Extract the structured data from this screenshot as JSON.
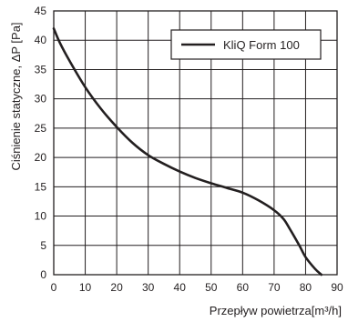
{
  "chart_data": {
    "type": "line",
    "title": "",
    "xlabel": "Przepływ powietrza[m³/h]",
    "ylabel": "Ciśnienie statyczne, ΔP [Pa]",
    "xlim": [
      0,
      90
    ],
    "ylim": [
      0,
      45
    ],
    "x_ticks": [
      0,
      10,
      20,
      30,
      40,
      50,
      60,
      70,
      80,
      90
    ],
    "y_ticks": [
      0,
      5,
      10,
      15,
      20,
      25,
      30,
      35,
      40,
      45
    ],
    "grid": true,
    "legend_position": "top-right",
    "colors": {
      "line": "#231f20",
      "grid": "#231f20",
      "axis": "#231f20"
    },
    "series": [
      {
        "name": "KliQ Form 100",
        "x": [
          0,
          2,
          5,
          10,
          15,
          20,
          25,
          30,
          35,
          40,
          45,
          50,
          55,
          60,
          65,
          70,
          73,
          75,
          78,
          80,
          83,
          85
        ],
        "y": [
          42,
          39.5,
          36.5,
          32,
          28.3,
          25.2,
          22.5,
          20.4,
          18.9,
          17.6,
          16.5,
          15.6,
          14.8,
          14,
          12.7,
          11,
          9.5,
          7.8,
          5,
          3,
          1,
          0
        ]
      }
    ]
  }
}
